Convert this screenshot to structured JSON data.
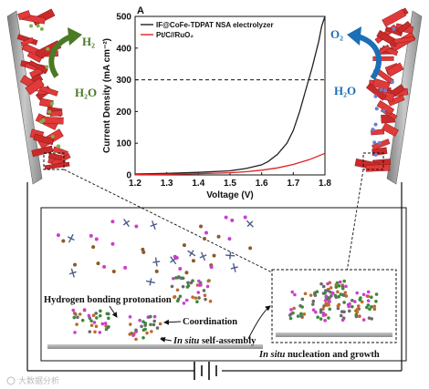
{
  "chart_data": {
    "type": "line",
    "title": "",
    "panel_letter": "A",
    "xlabel": "Voltage (V)",
    "ylabel": "Current Density (mA cm⁻²)",
    "xlim": [
      1.2,
      1.8
    ],
    "ylim": [
      0,
      500
    ],
    "xticks": [
      1.2,
      1.3,
      1.4,
      1.5,
      1.6,
      1.7,
      1.8
    ],
    "yticks": [
      0,
      100,
      200,
      300,
      400,
      500
    ],
    "reference_line": {
      "y": 300,
      "style": "dashed"
    },
    "legend_placement": "top-left",
    "series": [
      {
        "name": "IF@CoFe-TDPAT NSA electrolyzer",
        "color": "#222222",
        "x": [
          1.2,
          1.3,
          1.4,
          1.5,
          1.55,
          1.6,
          1.62,
          1.65,
          1.68,
          1.7,
          1.72,
          1.74,
          1.76,
          1.78,
          1.79,
          1.8
        ],
        "y": [
          3,
          5,
          8,
          13,
          20,
          32,
          42,
          65,
          100,
          140,
          200,
          270,
          340,
          420,
          470,
          500
        ]
      },
      {
        "name": "Pt/C//RuO2",
        "color": "#e02020",
        "x": [
          1.2,
          1.3,
          1.4,
          1.5,
          1.55,
          1.6,
          1.65,
          1.7,
          1.75,
          1.8
        ],
        "y": [
          1,
          2,
          4,
          7,
          10,
          15,
          22,
          33,
          48,
          68
        ]
      }
    ]
  },
  "legend": {
    "items": [
      "IF@CoFe-TDPAT NSA electrolyzer",
      "Pt/C//RuO₂"
    ]
  },
  "left_electrode": {
    "product": "H₂",
    "reactant": "H₂O"
  },
  "right_electrode": {
    "product": "O₂",
    "reactant": "H₂O"
  },
  "labels": {
    "hydrogen_bonding": "Hydrogen bonding protonation",
    "coordination": "Coordination",
    "in_situ": "In situ",
    "self_assembly": " self-assembly",
    "nucleation": " nucleation and growth"
  },
  "watermark": "大数据分析",
  "colors": {
    "cathode_accent": "#4a7a24",
    "anode_accent": "#1b6fb6",
    "catalyst_red": "#e03a3a",
    "electrode_gray": "#9a9a9a"
  }
}
